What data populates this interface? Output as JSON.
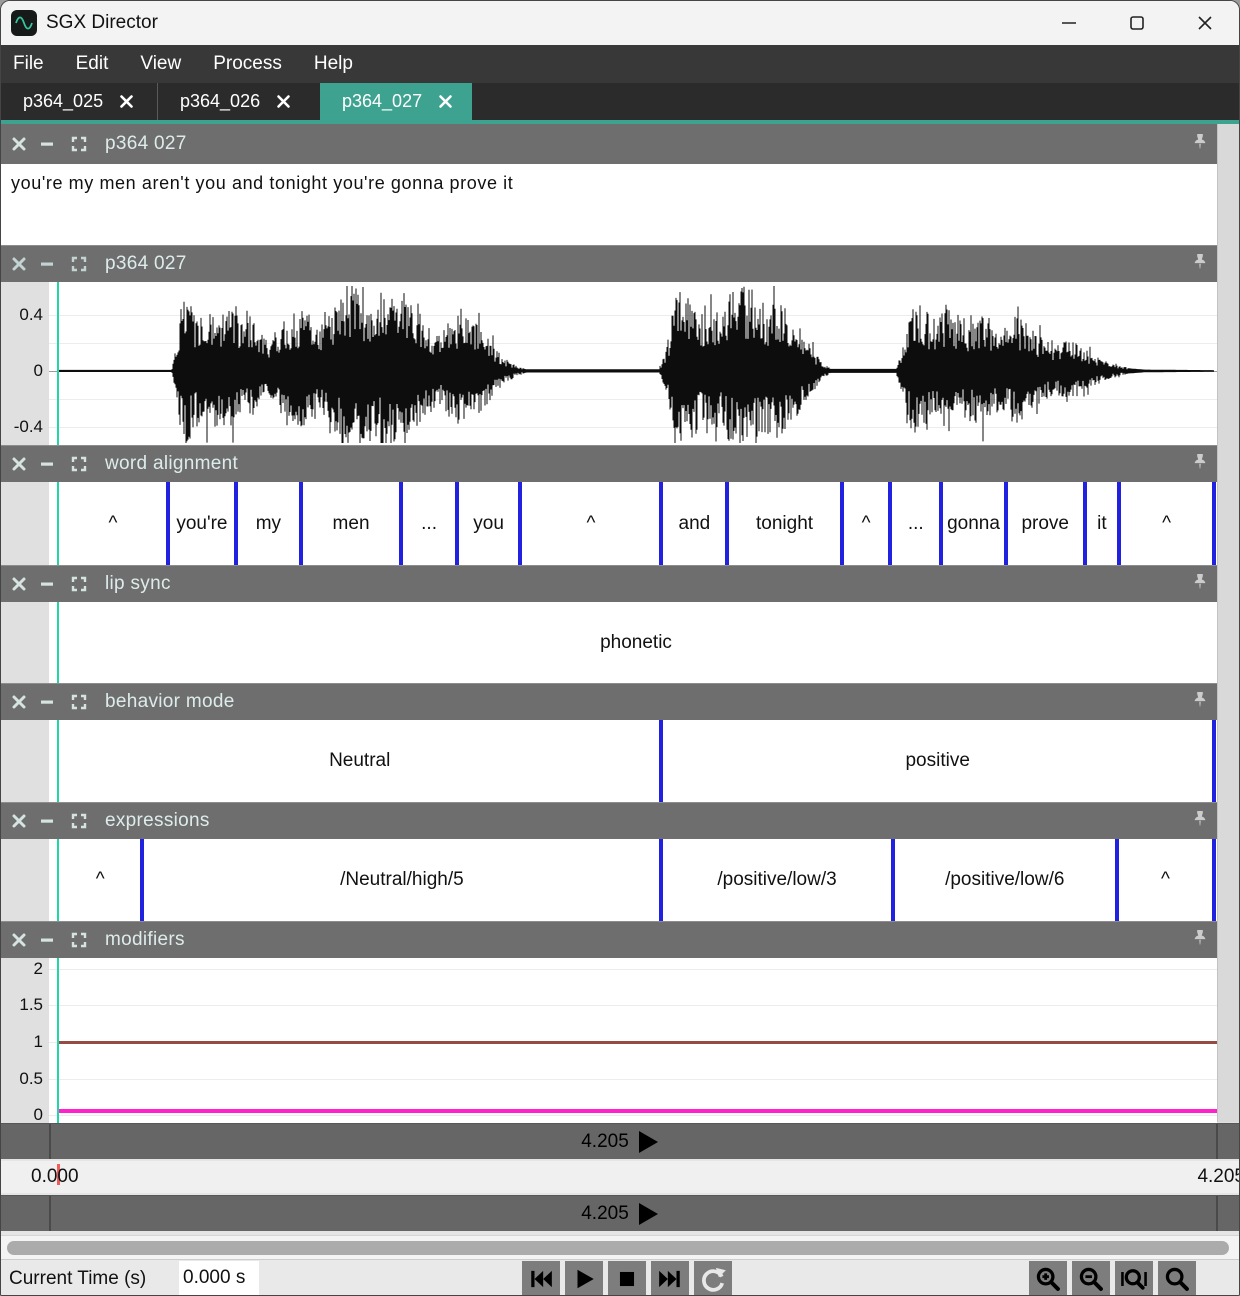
{
  "window": {
    "title": "SGX Director"
  },
  "menu": {
    "items": [
      "File",
      "Edit",
      "View",
      "Process",
      "Help"
    ]
  },
  "tabs": [
    {
      "label": "p364_025",
      "active": false
    },
    {
      "label": "p364_026",
      "active": false
    },
    {
      "label": "p364_027",
      "active": true
    }
  ],
  "colors": {
    "accent_teal": "#3da390",
    "playhead": "#1fd6a4",
    "boundary_blue": "#2121e0",
    "modifier_red": "#964a44",
    "modifier_magenta": "#ff22cc"
  },
  "panels": {
    "transcript": {
      "title": "p364 027",
      "text": "you're my men aren't you and tonight you're gonna prove it"
    },
    "waveform": {
      "title": "p364 027",
      "yticks": [
        "0.4",
        "0",
        "-0.4"
      ],
      "envelope": [
        [
          0,
          0.008
        ],
        [
          0.098,
          0.008
        ],
        [
          0.103,
          0.18
        ],
        [
          0.108,
          0.5
        ],
        [
          0.115,
          0.42
        ],
        [
          0.122,
          0.32
        ],
        [
          0.13,
          0.38
        ],
        [
          0.14,
          0.33
        ],
        [
          0.15,
          0.36
        ],
        [
          0.16,
          0.28
        ],
        [
          0.17,
          0.3
        ],
        [
          0.18,
          0.16
        ],
        [
          0.19,
          0.24
        ],
        [
          0.2,
          0.33
        ],
        [
          0.21,
          0.36
        ],
        [
          0.22,
          0.31
        ],
        [
          0.23,
          0.28
        ],
        [
          0.24,
          0.38
        ],
        [
          0.25,
          0.45
        ],
        [
          0.258,
          0.54
        ],
        [
          0.268,
          0.44
        ],
        [
          0.28,
          0.46
        ],
        [
          0.29,
          0.52
        ],
        [
          0.3,
          0.44
        ],
        [
          0.31,
          0.36
        ],
        [
          0.32,
          0.28
        ],
        [
          0.33,
          0.22
        ],
        [
          0.34,
          0.3
        ],
        [
          0.35,
          0.37
        ],
        [
          0.36,
          0.31
        ],
        [
          0.37,
          0.22
        ],
        [
          0.378,
          0.14
        ],
        [
          0.388,
          0.07
        ],
        [
          0.398,
          0.03
        ],
        [
          0.405,
          0.012
        ],
        [
          0.52,
          0.012
        ],
        [
          0.528,
          0.2
        ],
        [
          0.535,
          0.52
        ],
        [
          0.545,
          0.46
        ],
        [
          0.555,
          0.34
        ],
        [
          0.565,
          0.42
        ],
        [
          0.572,
          0.35
        ],
        [
          0.582,
          0.45
        ],
        [
          0.592,
          0.52
        ],
        [
          0.602,
          0.47
        ],
        [
          0.612,
          0.38
        ],
        [
          0.622,
          0.44
        ],
        [
          0.632,
          0.35
        ],
        [
          0.642,
          0.26
        ],
        [
          0.652,
          0.14
        ],
        [
          0.66,
          0.06
        ],
        [
          0.668,
          0.015
        ],
        [
          0.725,
          0.015
        ],
        [
          0.732,
          0.18
        ],
        [
          0.74,
          0.42
        ],
        [
          0.75,
          0.36
        ],
        [
          0.76,
          0.3
        ],
        [
          0.768,
          0.4
        ],
        [
          0.778,
          0.34
        ],
        [
          0.788,
          0.28
        ],
        [
          0.798,
          0.35
        ],
        [
          0.808,
          0.3
        ],
        [
          0.818,
          0.26
        ],
        [
          0.828,
          0.34
        ],
        [
          0.838,
          0.28
        ],
        [
          0.85,
          0.2
        ],
        [
          0.862,
          0.14
        ],
        [
          0.872,
          0.2
        ],
        [
          0.882,
          0.16
        ],
        [
          0.895,
          0.1
        ],
        [
          0.91,
          0.05
        ],
        [
          0.925,
          0.02
        ],
        [
          0.94,
          0.01
        ],
        [
          1,
          0.006
        ]
      ]
    },
    "word_alignment": {
      "title": "word alignment",
      "lines": true,
      "segments": [
        {
          "label": "^",
          "start": 0.0,
          "end": 0.095
        },
        {
          "label": "you're",
          "start": 0.095,
          "end": 0.154
        },
        {
          "label": "my",
          "start": 0.154,
          "end": 0.21
        },
        {
          "label": "men",
          "start": 0.21,
          "end": 0.297
        },
        {
          "label": "...",
          "start": 0.297,
          "end": 0.345
        },
        {
          "label": "you",
          "start": 0.345,
          "end": 0.4
        },
        {
          "label": "^",
          "start": 0.4,
          "end": 0.522
        },
        {
          "label": "and",
          "start": 0.522,
          "end": 0.579
        },
        {
          "label": "tonight",
          "start": 0.579,
          "end": 0.678
        },
        {
          "label": "^",
          "start": 0.678,
          "end": 0.72
        },
        {
          "label": "...",
          "start": 0.72,
          "end": 0.764
        },
        {
          "label": "gonna",
          "start": 0.764,
          "end": 0.82
        },
        {
          "label": "prove",
          "start": 0.82,
          "end": 0.888
        },
        {
          "label": "it",
          "start": 0.888,
          "end": 0.918
        },
        {
          "label": "^",
          "start": 0.918,
          "end": 1.0
        }
      ]
    },
    "lip_sync": {
      "title": "lip sync",
      "lines": false,
      "segments": [
        {
          "label": "phonetic",
          "start": 0.0,
          "end": 1.0
        }
      ]
    },
    "behavior_mode": {
      "title": "behavior mode",
      "lines": true,
      "segments": [
        {
          "label": "Neutral",
          "start": 0.0,
          "end": 0.522
        },
        {
          "label": "positive",
          "start": 0.522,
          "end": 1.0
        }
      ]
    },
    "expressions": {
      "title": "expressions",
      "lines": true,
      "segments": [
        {
          "label": "^",
          "start": 0.0,
          "end": 0.073
        },
        {
          "label": "/Neutral/high/5",
          "start": 0.073,
          "end": 0.522
        },
        {
          "label": "/positive/low/3",
          "start": 0.522,
          "end": 0.722
        },
        {
          "label": "/positive/low/6",
          "start": 0.722,
          "end": 0.916
        },
        {
          "label": "^",
          "start": 0.916,
          "end": 1.0
        }
      ]
    },
    "modifiers": {
      "title": "modifiers",
      "yticks": [
        "2",
        "1.5",
        "1",
        "0.5",
        "0"
      ],
      "lines": [
        {
          "value": 1.0,
          "color": "#964a44",
          "thickness": 3
        },
        {
          "value": 0.05,
          "color": "#ff22cc",
          "thickness": 4
        }
      ]
    }
  },
  "transport": {
    "slider_top_value": "4.205",
    "slider_bottom_value": "4.205",
    "ruler_start": "0.000",
    "ruler_end": "4.205"
  },
  "toolbar": {
    "current_time_label": "Current Time (s)",
    "current_time_value": "0.000 s"
  }
}
